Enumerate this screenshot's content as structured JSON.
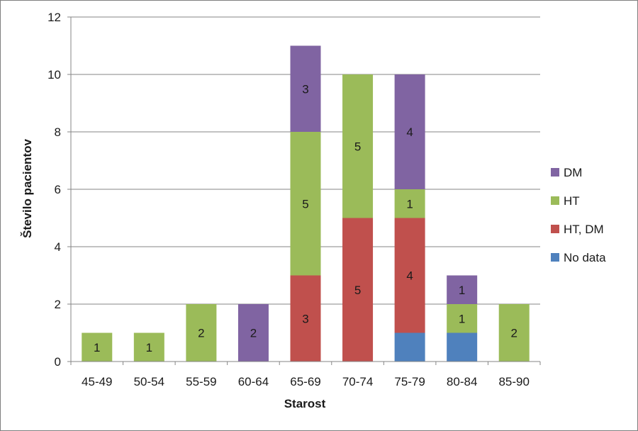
{
  "chart_data": {
    "type": "bar",
    "stacked": true,
    "title": "",
    "xlabel": "Starost",
    "ylabel": "Število pacientov",
    "ylim": [
      0,
      12
    ],
    "yticks": [
      0,
      2,
      4,
      6,
      8,
      10,
      12
    ],
    "grid": true,
    "legend_position": "right",
    "categories": [
      "45-49",
      "50-54",
      "55-59",
      "60-64",
      "65-69",
      "70-74",
      "75-79",
      "80-84",
      "85-90"
    ],
    "series": [
      {
        "name": "No data",
        "color": "#4f81bd",
        "values": [
          0,
          0,
          0,
          0,
          0,
          0,
          1,
          1,
          0
        ]
      },
      {
        "name": "HT, DM",
        "color": "#c0504d",
        "values": [
          0,
          0,
          0,
          0,
          3,
          5,
          4,
          0,
          0
        ]
      },
      {
        "name": "HT",
        "color": "#9bbb59",
        "values": [
          1,
          1,
          2,
          0,
          5,
          5,
          1,
          1,
          2
        ]
      },
      {
        "name": "DM",
        "color": "#8064a2",
        "values": [
          0,
          0,
          0,
          2,
          3,
          0,
          4,
          1,
          0
        ]
      }
    ],
    "data_labels_shown_for_series": [
      "HT, DM",
      "HT",
      "DM"
    ]
  }
}
